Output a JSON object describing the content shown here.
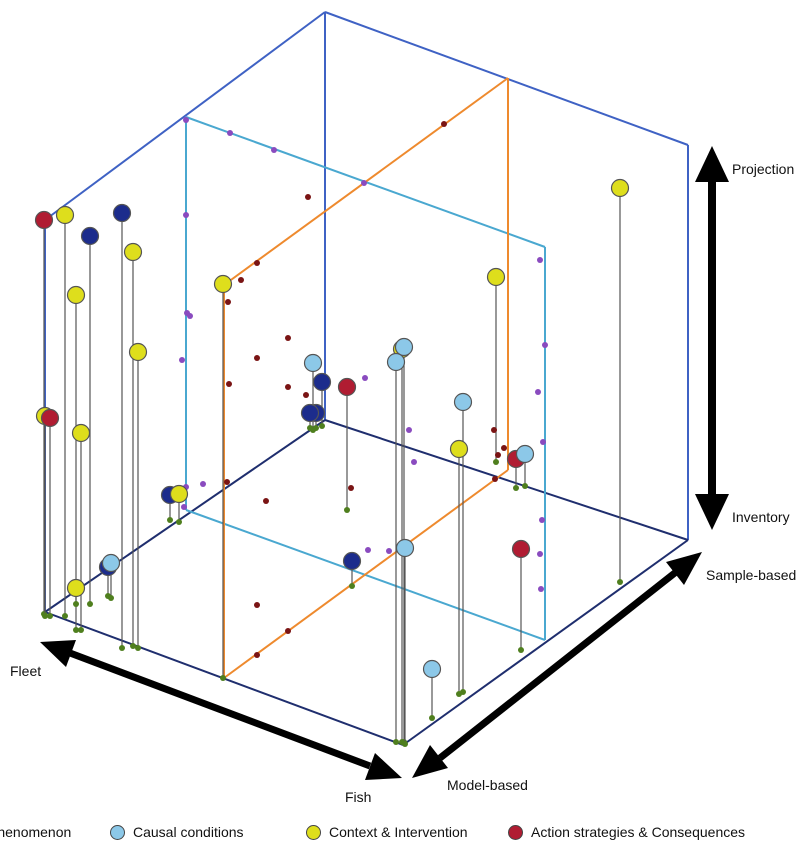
{
  "axes": {
    "vertical_top": "Projection",
    "vertical_bottom": "Inventory",
    "right_axis_end": "Sample-based",
    "right_axis_start": "Model-based",
    "left_axis_end": "Fleet",
    "left_axis_start": "Fish"
  },
  "legend": [
    {
      "label": "Phenomenon",
      "color": "#1c2c8c"
    },
    {
      "label": "Causal conditions",
      "color": "#8cc8e8"
    },
    {
      "label": "Context & Intervention",
      "color": "#dede1c"
    },
    {
      "label": "Action strategies & Consequences",
      "color": "#b01c32"
    }
  ],
  "colors": {
    "outer_box": "#3f62c4",
    "cyan_plane": "#4aa8d0",
    "orange_plane": "#ee8a2e",
    "floor": "#1f2e6e",
    "ground_dot": "#4f7f1e",
    "purple_dot": "#8a4bbf",
    "maroon_dot": "#7a1414",
    "stem": "#555555"
  }
}
